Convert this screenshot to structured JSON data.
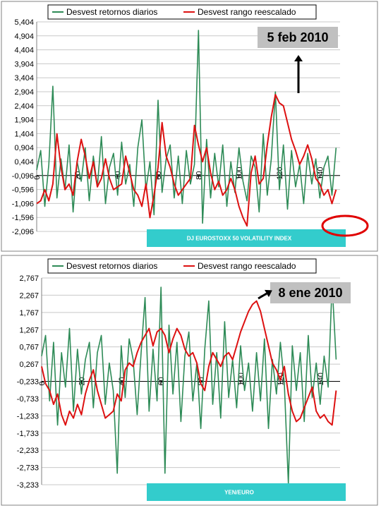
{
  "chart_data": [
    {
      "type": "line",
      "title": "",
      "bottom_label": "DJ EUROSTOXX 50 VOLATILITY INDEX",
      "annotation": "5 feb 2010",
      "legend": [
        "Desvest retornos diarios",
        "Desvest rango reescalado"
      ],
      "xlabel": "",
      "ylabel": "",
      "ylim": [
        -2.096,
        5.404
      ],
      "xlim": [
        0,
        150
      ],
      "yticks": [
        "5,404",
        "4,904",
        "4,404",
        "3,904",
        "3,404",
        "2,904",
        "2,404",
        "1,904",
        "1,404",
        "0,904",
        "0,404",
        "-0,096",
        "-0,596",
        "-1,096",
        "-1,596",
        "-2,096"
      ],
      "xticks": [
        "0",
        "20",
        "40",
        "60",
        "80",
        "100",
        "120",
        "140"
      ],
      "colors": {
        "returns": "#2e8b57",
        "range": "#dd1111",
        "bottom_box": "#33cccc",
        "callout_box": "#c0c0c0",
        "circle": "#e00000"
      },
      "series": [
        {
          "name": "Desvest retornos diarios",
          "x": [
            0,
            2,
            4,
            6,
            8,
            10,
            12,
            14,
            16,
            18,
            20,
            22,
            24,
            26,
            28,
            30,
            32,
            34,
            36,
            38,
            40,
            42,
            44,
            46,
            48,
            50,
            52,
            54,
            56,
            58,
            60,
            62,
            64,
            66,
            68,
            70,
            72,
            74,
            76,
            78,
            80,
            82,
            84,
            86,
            88,
            90,
            92,
            94,
            96,
            98,
            100,
            102,
            104,
            106,
            108,
            110,
            112,
            114,
            116,
            118,
            120,
            122,
            124,
            126,
            128,
            130,
            132,
            134,
            136,
            138,
            140,
            142,
            144,
            146,
            148
          ],
          "y": [
            0.1,
            0.8,
            -1.2,
            0.3,
            3.1,
            -0.9,
            0.5,
            -0.6,
            1.0,
            -1.4,
            0.4,
            -0.3,
            0.9,
            -1.0,
            0.6,
            -0.5,
            1.3,
            -1.1,
            0.2,
            0.7,
            -0.8,
            1.1,
            -0.4,
            0.3,
            -1.2,
            0.9,
            1.9,
            -0.6,
            0.4,
            -1.5,
            2.6,
            -0.7,
            0.5,
            1.0,
            -0.9,
            0.6,
            -1.1,
            0.8,
            -0.4,
            0.3,
            5.1,
            -1.8,
            1.2,
            -0.9,
            0.7,
            -0.5,
            1.0,
            -1.2,
            0.4,
            -0.7,
            0.9,
            -0.3,
            -1.0,
            0.6,
            0.2,
            -1.4,
            1.4,
            -0.8,
            0.5,
            2.9,
            -0.6,
            1.0,
            -1.3,
            0.8,
            -0.5,
            0.3,
            -1.1,
            0.7,
            -0.4,
            0.5,
            -0.9,
            0.2,
            0.6,
            -0.8,
            0.9
          ]
        },
        {
          "name": "Desvest rango reescalado",
          "x": [
            0,
            2,
            4,
            6,
            8,
            10,
            12,
            14,
            16,
            18,
            20,
            22,
            24,
            26,
            28,
            30,
            32,
            34,
            36,
            38,
            40,
            42,
            44,
            46,
            48,
            50,
            52,
            54,
            56,
            58,
            60,
            62,
            64,
            66,
            68,
            70,
            72,
            74,
            76,
            78,
            80,
            82,
            84,
            86,
            88,
            90,
            92,
            94,
            96,
            98,
            100,
            102,
            104,
            106,
            108,
            110,
            112,
            114,
            116,
            118,
            120,
            122,
            124,
            126,
            128,
            130,
            132,
            134,
            136,
            138,
            140,
            142,
            144,
            146,
            148
          ],
          "y": [
            -1.1,
            -1.0,
            -0.6,
            -1.0,
            -0.4,
            1.4,
            0.2,
            -0.6,
            -0.4,
            -0.8,
            0.4,
            1.2,
            0.6,
            -0.2,
            0.4,
            -0.5,
            -0.2,
            0.5,
            -0.2,
            -0.6,
            -0.5,
            -0.4,
            0.6,
            0.0,
            -0.6,
            -0.8,
            -1.2,
            -0.4,
            -1.6,
            -0.8,
            0.2,
            1.8,
            0.6,
            0.2,
            -0.4,
            -0.8,
            -0.6,
            -0.4,
            -0.2,
            1.7,
            1.0,
            0.4,
            0.9,
            0.0,
            -0.6,
            -0.3,
            -0.8,
            -0.6,
            -0.2,
            -0.6,
            -1.2,
            -1.6,
            -1.9,
            0.0,
            0.6,
            -0.4,
            -0.2,
            1.0,
            2.0,
            2.8,
            2.5,
            2.4,
            1.8,
            1.2,
            0.8,
            0.3,
            0.6,
            1.0,
            0.5,
            -0.2,
            -0.4,
            -0.8,
            -0.6,
            -1.1,
            -0.6
          ]
        }
      ]
    },
    {
      "type": "line",
      "title": "",
      "bottom_label": "YEN/EURO",
      "annotation": "8 ene 2010",
      "legend": [
        "Desvest retornos diarios",
        "Desvest rango reescalado"
      ],
      "xlabel": "",
      "ylabel": "",
      "ylim": [
        -3.233,
        2.767
      ],
      "xlim": [
        0,
        150
      ],
      "yticks": [
        "2,767",
        "2,267",
        "1,767",
        "1,267",
        "0,767",
        "0,267",
        "-0,233",
        "-0,733",
        "-1,233",
        "-1,733",
        "-2,233",
        "-2,733",
        "-3,233"
      ],
      "xticks": [
        "0",
        "20",
        "40",
        "60",
        "80",
        "100",
        "120",
        "140"
      ],
      "colors": {
        "returns": "#2e8b57",
        "range": "#dd1111",
        "bottom_box": "#33cccc",
        "callout_box": "#c0c0c0"
      },
      "series": [
        {
          "name": "Desvest retornos diarios",
          "x": [
            0,
            2,
            4,
            6,
            8,
            10,
            12,
            14,
            16,
            18,
            20,
            22,
            24,
            26,
            28,
            30,
            32,
            34,
            36,
            38,
            40,
            42,
            44,
            46,
            48,
            50,
            52,
            54,
            56,
            58,
            60,
            62,
            64,
            66,
            68,
            70,
            72,
            74,
            76,
            78,
            80,
            82,
            84,
            86,
            88,
            90,
            92,
            94,
            96,
            98,
            100,
            102,
            104,
            106,
            108,
            110,
            112,
            114,
            116,
            118,
            120,
            122,
            124,
            126,
            128,
            130,
            132,
            134,
            136,
            138,
            140,
            142,
            144,
            146,
            148
          ],
          "y": [
            0.5,
            1.1,
            -0.8,
            0.9,
            -1.5,
            0.6,
            -0.4,
            1.3,
            -1.1,
            0.7,
            -0.6,
            0.4,
            0.9,
            -1.0,
            0.6,
            1.1,
            -0.9,
            0.3,
            -0.5,
            -2.9,
            0.8,
            -0.7,
            1.0,
            0.4,
            -1.2,
            0.6,
            2.2,
            -1.1,
            0.7,
            -0.8,
            2.5,
            -2.9,
            1.4,
            -0.6,
            0.9,
            -1.4,
            0.5,
            1.2,
            -0.8,
            0.3,
            -1.6,
            0.7,
            2.1,
            -0.9,
            0.6,
            -1.3,
            1.5,
            -0.7,
            0.4,
            -1.0,
            0.8,
            -0.5,
            0.3,
            -1.1,
            0.6,
            -0.8,
            1.0,
            -1.6,
            0.4,
            -0.6,
            0.9,
            -0.3,
            -3.2,
            0.8,
            -0.5,
            0.6,
            -1.4,
            1.1,
            -0.7,
            0.3,
            -0.9,
            0.5,
            -0.4,
            2.6,
            0.4
          ]
        },
        {
          "name": "Desvest rango reescalado",
          "x": [
            0,
            2,
            4,
            6,
            8,
            10,
            12,
            14,
            16,
            18,
            20,
            22,
            24,
            26,
            28,
            30,
            32,
            34,
            36,
            38,
            40,
            42,
            44,
            46,
            48,
            50,
            52,
            54,
            56,
            58,
            60,
            62,
            64,
            66,
            68,
            70,
            72,
            74,
            76,
            78,
            80,
            82,
            84,
            86,
            88,
            90,
            92,
            94,
            96,
            98,
            100,
            102,
            104,
            106,
            108,
            110,
            112,
            114,
            116,
            118,
            120,
            122,
            124,
            126,
            128,
            130,
            132,
            134,
            136,
            138,
            140,
            142,
            144,
            146,
            148
          ],
          "y": [
            0.2,
            -0.3,
            -0.5,
            -0.9,
            -0.6,
            -1.2,
            -1.5,
            -1.1,
            -1.3,
            -0.9,
            -1.2,
            -0.6,
            -0.2,
            0.1,
            -0.5,
            -0.9,
            -1.3,
            -1.2,
            -1.1,
            -0.6,
            -0.8,
            0.1,
            0.3,
            0.2,
            0.6,
            0.9,
            1.1,
            1.3,
            0.8,
            1.2,
            1.3,
            1.1,
            0.6,
            1.0,
            1.3,
            1.1,
            0.7,
            0.5,
            0.6,
            0.3,
            -0.3,
            -0.5,
            0.2,
            0.6,
            0.4,
            0.2,
            0.5,
            0.6,
            0.4,
            0.8,
            1.2,
            1.5,
            1.8,
            2.0,
            2.1,
            1.8,
            1.3,
            0.8,
            0.3,
            0.1,
            -0.2,
            0.2,
            -0.6,
            -1.1,
            -1.4,
            -1.3,
            -1.0,
            -0.7,
            -0.4,
            -1.1,
            -1.3,
            -1.2,
            -1.4,
            -1.5,
            -0.5
          ]
        }
      ]
    }
  ]
}
